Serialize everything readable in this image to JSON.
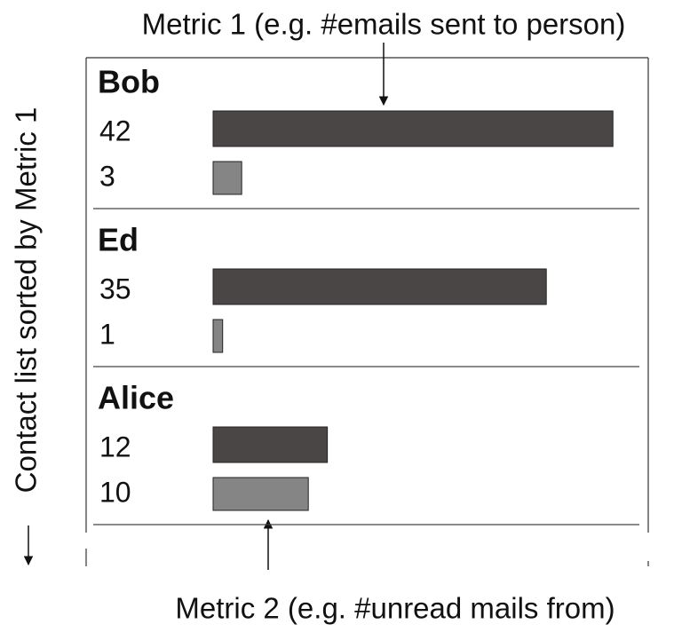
{
  "annotations": {
    "top": "Metric 1 (e.g. #emails sent to person)",
    "bottom": "Metric 2 (e.g. #unread mails from)",
    "side": "Contact list sorted by Metric 1"
  },
  "contacts": [
    {
      "name": "Bob",
      "metric1": 42,
      "metric2": 3
    },
    {
      "name": "Ed",
      "metric1": 35,
      "metric2": 1
    },
    {
      "name": "Alice",
      "metric1": 12,
      "metric2": 10
    }
  ]
}
